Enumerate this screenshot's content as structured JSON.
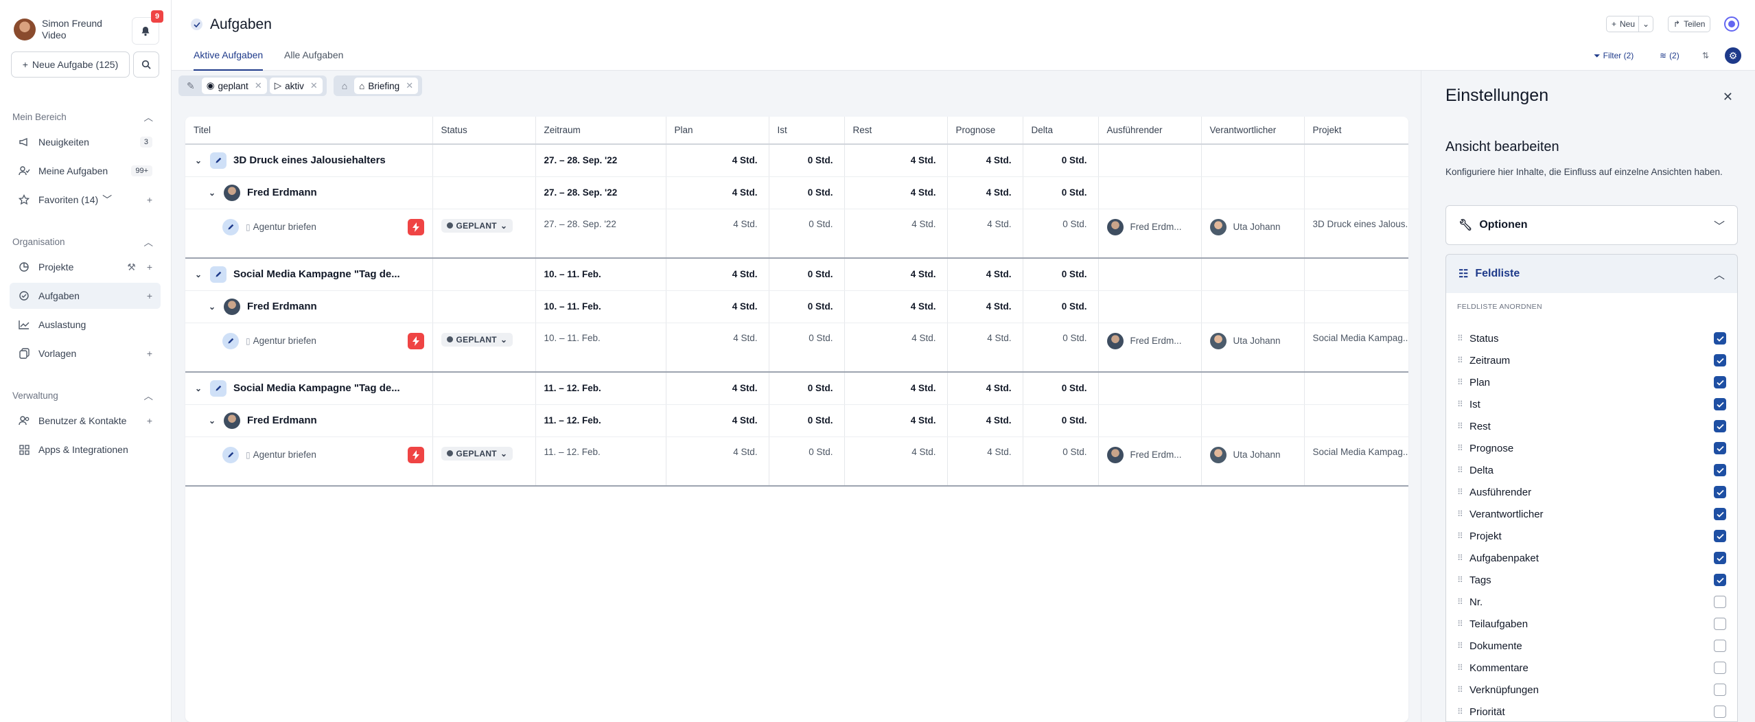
{
  "user": {
    "name": "Simon Freund",
    "role": "Video",
    "notifications": "9"
  },
  "sidebar": {
    "new_task_label": "Neue Aufgabe (125)",
    "sections": [
      {
        "label": "Mein Bereich",
        "items": [
          {
            "label": "Neuigkeiten",
            "badge": "3"
          },
          {
            "label": "Meine Aufgaben",
            "badge": "99+"
          },
          {
            "label": "Favoriten (14)",
            "badge": ""
          }
        ]
      },
      {
        "label": "Organisation",
        "items": [
          {
            "label": "Projekte",
            "badge": ""
          },
          {
            "label": "Aufgaben",
            "badge": ""
          },
          {
            "label": "Auslastung",
            "badge": ""
          },
          {
            "label": "Vorlagen",
            "badge": ""
          }
        ]
      },
      {
        "label": "Verwaltung",
        "items": [
          {
            "label": "Benutzer & Kontakte",
            "badge": ""
          },
          {
            "label": "Apps & Integrationen",
            "badge": ""
          }
        ]
      }
    ]
  },
  "header": {
    "title": "Aufgaben",
    "tabs": [
      "Aktive Aufgaben",
      "Alle Aufgaben"
    ],
    "new_label": "Neu",
    "share_label": "Teilen",
    "filter_label": "Filter (2)",
    "group_label": "(2)"
  },
  "filters": {
    "chips": [
      "geplant",
      "aktiv",
      "Briefing"
    ]
  },
  "table": {
    "columns": [
      "Titel",
      "Status",
      "Zeitraum",
      "Plan",
      "Ist",
      "Rest",
      "Prognose",
      "Delta",
      "Ausführender",
      "Verantwortlicher",
      "Projekt"
    ],
    "groups": [
      {
        "project": "3D Druck eines Jalousiehalters",
        "person": "Fred Erdmann",
        "task": "Agentur briefen",
        "status": "GEPLANT",
        "date_project": "27. – 28. Sep. '22",
        "date_person": "27. – 28. Sep. '22",
        "date_task": "27. – 28. Sep. '22",
        "plan": "4 Std.",
        "ist": "0 Std.",
        "rest": "4 Std.",
        "prognose": "4 Std.",
        "delta": "0 Std.",
        "assignee": "Fred Erdm...",
        "responsible": "Uta Johann",
        "project_col": "3D Druck eines Jalous..."
      },
      {
        "project": "Social Media Kampagne \"Tag de...",
        "person": "Fred Erdmann",
        "task": "Agentur briefen",
        "status": "GEPLANT",
        "date_project": "10. – 11. Feb.",
        "date_person": "10. – 11. Feb.",
        "date_task": "10. – 11. Feb.",
        "plan": "4 Std.",
        "ist": "0 Std.",
        "rest": "4 Std.",
        "prognose": "4 Std.",
        "delta": "0 Std.",
        "assignee": "Fred Erdm...",
        "responsible": "Uta Johann",
        "project_col": "Social Media Kampag..."
      },
      {
        "project": "Social Media Kampagne \"Tag de...",
        "person": "Fred Erdmann",
        "task": "Agentur briefen",
        "status": "GEPLANT",
        "date_project": "11. – 12. Feb.",
        "date_person": "11. – 12. Feb.",
        "date_task": "11. – 12. Feb.",
        "plan": "4 Std.",
        "ist": "0 Std.",
        "rest": "4 Std.",
        "prognose": "4 Std.",
        "delta": "0 Std.",
        "assignee": "Fred Erdm...",
        "responsible": "Uta Johann",
        "project_col": "Social Media Kampag..."
      }
    ]
  },
  "settings": {
    "title": "Einstellungen",
    "subtitle": "Ansicht bearbeiten",
    "description": "Konfiguriere hier Inhalte, die Einfluss auf einzelne Ansichten haben.",
    "options_label": "Optionen",
    "fieldlist_label": "Feldliste",
    "fieldlist_heading": "FELDLISTE ANORDNEN",
    "fields": [
      {
        "label": "Status",
        "checked": true
      },
      {
        "label": "Zeitraum",
        "checked": true
      },
      {
        "label": "Plan",
        "checked": true
      },
      {
        "label": "Ist",
        "checked": true
      },
      {
        "label": "Rest",
        "checked": true
      },
      {
        "label": "Prognose",
        "checked": true
      },
      {
        "label": "Delta",
        "checked": true
      },
      {
        "label": "Ausführender",
        "checked": true
      },
      {
        "label": "Verantwortlicher",
        "checked": true
      },
      {
        "label": "Projekt",
        "checked": true
      },
      {
        "label": "Aufgabenpaket",
        "checked": true
      },
      {
        "label": "Tags",
        "checked": true
      },
      {
        "label": "Nr.",
        "checked": false
      },
      {
        "label": "Teilaufgaben",
        "checked": false
      },
      {
        "label": "Dokumente",
        "checked": false
      },
      {
        "label": "Kommentare",
        "checked": false
      },
      {
        "label": "Verknüpfungen",
        "checked": false
      },
      {
        "label": "Priorität",
        "checked": false
      }
    ]
  },
  "colors": {
    "accent": "#1e3a8a",
    "checkbox": "#1e4fa3",
    "danger": "#ef4444",
    "panel_bg": "#f3f5f8"
  }
}
